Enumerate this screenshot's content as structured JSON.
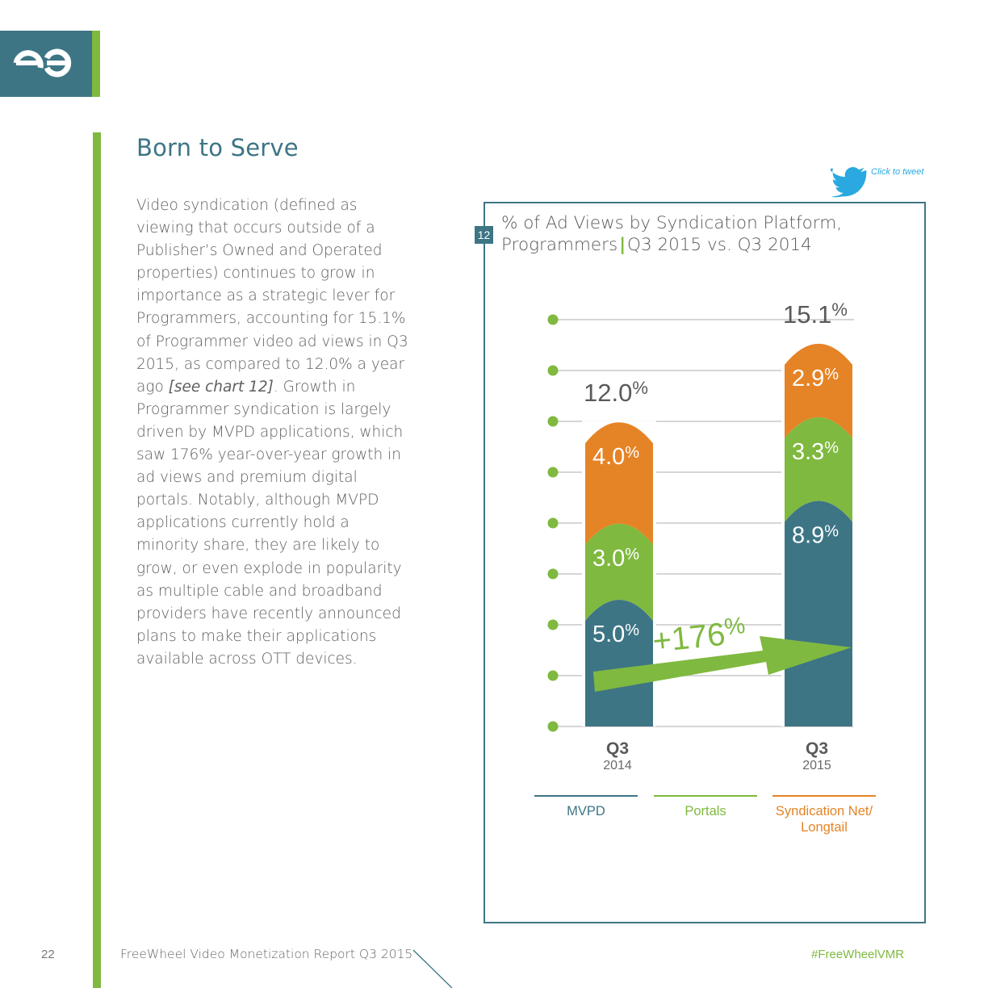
{
  "colors": {
    "teal": "#3d7585",
    "green": "#7fb93f",
    "orange": "#e58426",
    "twitter": "#2aa9e0"
  },
  "logo": {
    "icon": "freewheel-logo"
  },
  "heading": "Born to Serve",
  "body": {
    "p1": "Video syndication (defined as viewing that occurs outside of a Publisher’s Owned and Operated properties) continues to grow in importance as a strategic lever for Programmers, accounting for 15.1% of Programmer video ad views in Q3 2015, as compared to 12.0% a year ago ",
    "ref": "[see chart 12]",
    "p2": ". Growth in Programmer syndication is largely driven by MVPD applications, which saw 176% year-over-year growth in ad views and premium digital portals. Notably, although MVPD applications currently hold a minority share, they are likely to grow, or even explode in popularity as multiple cable and broadband providers have recently announced plans to make their applications available across OTT devices."
  },
  "tweet": {
    "icon": "twitter-bird-icon",
    "label": "Click to tweet"
  },
  "chart_number": "12",
  "chart_title": {
    "line1": "% of Ad Views by Syndication Platform,",
    "line2a": "Programmers",
    "sep": "|",
    "line2b": "Q3 2015 vs. Q3 2014"
  },
  "chart_data": {
    "type": "bar",
    "stacked": true,
    "title": "% of Ad Views by Syndication Platform, Programmers | Q3 2015 vs. Q3 2014",
    "categories": [
      {
        "q": "Q3",
        "year": "2014"
      },
      {
        "q": "Q3",
        "year": "2015"
      }
    ],
    "series": [
      {
        "name": "MVPD",
        "color": "#3d7585",
        "values": [
          5.0,
          8.9
        ],
        "labels": [
          "5.0",
          "8.9"
        ]
      },
      {
        "name": "Portals",
        "color": "#7fb93f",
        "values": [
          3.0,
          3.3
        ],
        "labels": [
          "3.0",
          "3.3"
        ]
      },
      {
        "name": "Syndication Net/ Longtail",
        "color": "#e58426",
        "values": [
          4.0,
          2.9
        ],
        "labels": [
          "4.0",
          "2.9"
        ]
      }
    ],
    "totals": [
      "12.0",
      "15.1"
    ],
    "unit": "%",
    "growth_label": "+176%",
    "growth_series": "MVPD",
    "ylim": [
      0,
      16
    ],
    "gridlines": 9,
    "legend_position": "bottom",
    "legend": [
      {
        "label1": "MVPD",
        "label2": "",
        "color": "#3d7585"
      },
      {
        "label1": "Portals",
        "label2": "",
        "color": "#7fb93f"
      },
      {
        "label1": "Syndication Net/",
        "label2": "Longtail",
        "color": "#e58426"
      }
    ]
  },
  "footer": {
    "page": "22",
    "report": "FreeWheel Video Monetization Report Q3 2015",
    "hashtag": "#FreeWheelVMR"
  }
}
